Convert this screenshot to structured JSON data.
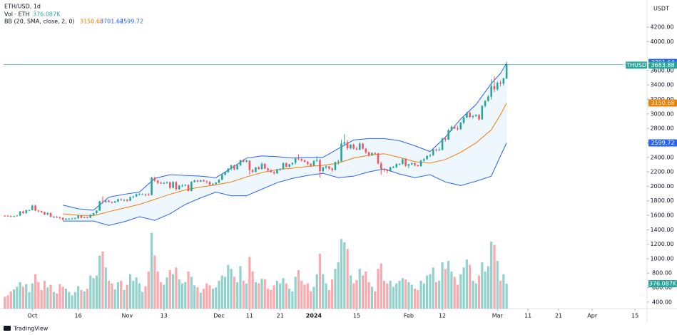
{
  "chart_data": {
    "type": "candlestick",
    "title": "ETH/USD, 1d",
    "volume_legend": "Vol · ETH",
    "volume_value_label": "376.087K",
    "bb_legend": "BB (20, SMA, close, 2, 0)",
    "currency": "USDT",
    "symbol_tag": "ETHUSDT",
    "brand": "TradingView",
    "up_color": "#26a69a",
    "down_color": "#f7525f",
    "bb_colors": {
      "upper": "#2962ff",
      "basis": "#f57c00",
      "lower": "#2962ff",
      "fill": "#e3f2fd"
    },
    "xlim": [
      -0.4,
      209.9
    ],
    "ylim": [
      310,
      4525
    ],
    "vlim": [
      0,
      4600
    ],
    "xticks": [
      {
        "value": 9,
        "label": "Oct"
      },
      {
        "value": 24,
        "label": "16"
      },
      {
        "value": 40,
        "label": "Nov"
      },
      {
        "value": 52,
        "label": "13"
      },
      {
        "value": 70,
        "label": "Dec"
      },
      {
        "value": 80,
        "label": "11"
      },
      {
        "value": 90,
        "label": "21"
      },
      {
        "value": 101,
        "label": "2024"
      },
      {
        "value": 115,
        "label": "15"
      },
      {
        "value": 132,
        "label": "Feb"
      },
      {
        "value": 143,
        "label": "12"
      },
      {
        "value": 161,
        "label": "Mar"
      },
      {
        "value": 171,
        "label": "11"
      },
      {
        "value": 181,
        "label": "21"
      },
      {
        "value": 192,
        "label": "Apr"
      },
      {
        "value": 206,
        "label": "15"
      }
    ],
    "yticks": [
      {
        "value": 400,
        "label": "400.00"
      },
      {
        "value": 600,
        "label": "600.00"
      },
      {
        "value": 800,
        "label": "800.00"
      },
      {
        "value": 1000,
        "label": "1000.00"
      },
      {
        "value": 1200,
        "label": "1200.00"
      },
      {
        "value": 1400,
        "label": "1400.00"
      },
      {
        "value": 1600,
        "label": "1600.00"
      },
      {
        "value": 1800,
        "label": "1800.00"
      },
      {
        "value": 2000,
        "label": "2000.00"
      },
      {
        "value": 2200,
        "label": "2200.00"
      },
      {
        "value": 2400,
        "label": "2400.00"
      },
      {
        "value": 2600,
        "label": "2600.00"
      },
      {
        "value": 2800,
        "label": "2800.00"
      },
      {
        "value": 3000,
        "label": "3000.00"
      },
      {
        "value": 3200,
        "label": "3200.00"
      },
      {
        "value": 3400,
        "label": "3400.00"
      },
      {
        "value": 3600,
        "label": "3600.00"
      },
      {
        "value": 4000,
        "label": "4000.00"
      },
      {
        "value": 4200,
        "label": "4200.00"
      }
    ],
    "candles": [
      [
        1595,
        1602,
        1580,
        1593,
        180
      ],
      [
        1593,
        1600,
        1582,
        1590,
        200
      ],
      [
        1590,
        1596,
        1572,
        1580,
        260
      ],
      [
        1580,
        1594,
        1575,
        1588,
        290
      ],
      [
        1588,
        1604,
        1583,
        1595,
        330
      ],
      [
        1595,
        1660,
        1590,
        1652,
        400
      ],
      [
        1652,
        1665,
        1620,
        1630,
        330
      ],
      [
        1630,
        1678,
        1622,
        1670,
        370
      ],
      [
        1670,
        1682,
        1655,
        1672,
        250
      ],
      [
        1672,
        1745,
        1668,
        1733,
        380
      ],
      [
        1733,
        1745,
        1655,
        1665,
        520
      ],
      [
        1665,
        1675,
        1640,
        1660,
        400
      ],
      [
        1660,
        1662,
        1630,
        1645,
        280
      ],
      [
        1645,
        1650,
        1600,
        1612,
        420
      ],
      [
        1612,
        1640,
        1600,
        1632,
        320
      ],
      [
        1632,
        1636,
        1570,
        1580,
        360
      ],
      [
        1580,
        1590,
        1565,
        1580,
        250
      ],
      [
        1580,
        1590,
        1565,
        1578,
        230
      ],
      [
        1578,
        1582,
        1545,
        1565,
        370
      ],
      [
        1565,
        1570,
        1525,
        1540,
        330
      ],
      [
        1540,
        1560,
        1535,
        1552,
        300
      ],
      [
        1552,
        1560,
        1540,
        1552,
        250
      ],
      [
        1552,
        1565,
        1545,
        1555,
        200
      ],
      [
        1555,
        1570,
        1545,
        1558,
        250
      ],
      [
        1558,
        1605,
        1550,
        1595,
        340
      ],
      [
        1595,
        1600,
        1555,
        1565,
        280
      ],
      [
        1565,
        1580,
        1560,
        1573,
        260
      ],
      [
        1573,
        1580,
        1555,
        1565,
        300
      ],
      [
        1565,
        1615,
        1560,
        1605,
        500
      ],
      [
        1605,
        1635,
        1595,
        1630,
        460
      ],
      [
        1630,
        1670,
        1615,
        1665,
        500
      ],
      [
        1665,
        1800,
        1660,
        1792,
        800
      ],
      [
        1792,
        1860,
        1760,
        1785,
        860
      ],
      [
        1785,
        1810,
        1770,
        1800,
        620
      ],
      [
        1800,
        1815,
        1775,
        1785,
        420
      ],
      [
        1785,
        1790,
        1760,
        1775,
        380
      ],
      [
        1775,
        1800,
        1770,
        1790,
        290
      ],
      [
        1790,
        1830,
        1780,
        1820,
        400
      ],
      [
        1820,
        1830,
        1800,
        1810,
        420
      ],
      [
        1810,
        1820,
        1790,
        1815,
        280
      ],
      [
        1815,
        1825,
        1785,
        1800,
        360
      ],
      [
        1800,
        1860,
        1795,
        1850,
        520
      ],
      [
        1850,
        1870,
        1835,
        1860,
        420
      ],
      [
        1860,
        1900,
        1850,
        1890,
        470
      ],
      [
        1890,
        1905,
        1875,
        1890,
        380
      ],
      [
        1890,
        1900,
        1880,
        1890,
        250
      ],
      [
        1890,
        1900,
        1860,
        1885,
        340
      ],
      [
        1885,
        1905,
        1870,
        1880,
        560
      ],
      [
        1880,
        2130,
        1875,
        2120,
        1140
      ],
      [
        2120,
        2135,
        2060,
        2080,
        800
      ],
      [
        2080,
        2090,
        2030,
        2050,
        560
      ],
      [
        2050,
        2065,
        2030,
        2045,
        400
      ],
      [
        2045,
        2060,
        2035,
        2045,
        360
      ],
      [
        2045,
        2070,
        2035,
        2055,
        470
      ],
      [
        2055,
        2065,
        1960,
        1980,
        580
      ],
      [
        1980,
        2070,
        1970,
        2060,
        520
      ],
      [
        2060,
        2070,
        1940,
        1960,
        620
      ],
      [
        1960,
        2020,
        1950,
        2010,
        440
      ],
      [
        2010,
        2030,
        1990,
        2010,
        380
      ],
      [
        2010,
        2030,
        2000,
        2020,
        400
      ],
      [
        2020,
        2025,
        1930,
        1935,
        560
      ],
      [
        1935,
        2070,
        1930,
        2060,
        480
      ],
      [
        2060,
        2090,
        2050,
        2080,
        350
      ],
      [
        2080,
        2090,
        2055,
        2065,
        320
      ],
      [
        2065,
        2090,
        2060,
        2085,
        240
      ],
      [
        2085,
        2095,
        2060,
        2070,
        300
      ],
      [
        2070,
        2080,
        2040,
        2060,
        380
      ],
      [
        2060,
        2070,
        2015,
        2025,
        350
      ],
      [
        2025,
        2045,
        2020,
        2030,
        300
      ],
      [
        2030,
        2060,
        2025,
        2050,
        320
      ],
      [
        2050,
        2100,
        2040,
        2090,
        420
      ],
      [
        2090,
        2170,
        2085,
        2160,
        500
      ],
      [
        2160,
        2200,
        2150,
        2195,
        480
      ],
      [
        2195,
        2250,
        2185,
        2245,
        660
      ],
      [
        2245,
        2300,
        2225,
        2290,
        600
      ],
      [
        2290,
        2300,
        2220,
        2235,
        480
      ],
      [
        2235,
        2300,
        2230,
        2290,
        400
      ],
      [
        2290,
        2370,
        2280,
        2360,
        640
      ],
      [
        2360,
        2375,
        2330,
        2340,
        420
      ],
      [
        2340,
        2370,
        2330,
        2355,
        380
      ],
      [
        2355,
        2360,
        2160,
        2225,
        780
      ],
      [
        2225,
        2240,
        2180,
        2200,
        560
      ],
      [
        2200,
        2270,
        2190,
        2260,
        400
      ],
      [
        2260,
        2280,
        2230,
        2240,
        380
      ],
      [
        2240,
        2330,
        2230,
        2310,
        450
      ],
      [
        2310,
        2320,
        2240,
        2245,
        440
      ],
      [
        2245,
        2260,
        2210,
        2220,
        300
      ],
      [
        2220,
        2235,
        2190,
        2195,
        280
      ],
      [
        2195,
        2210,
        2160,
        2180,
        350
      ],
      [
        2180,
        2240,
        2170,
        2235,
        420
      ],
      [
        2235,
        2250,
        2210,
        2240,
        380
      ],
      [
        2240,
        2330,
        2235,
        2320,
        460
      ],
      [
        2320,
        2330,
        2260,
        2270,
        380
      ],
      [
        2270,
        2310,
        2260,
        2305,
        300
      ],
      [
        2305,
        2330,
        2290,
        2325,
        260
      ],
      [
        2325,
        2400,
        2300,
        2385,
        480
      ],
      [
        2385,
        2440,
        2360,
        2375,
        580
      ],
      [
        2375,
        2390,
        2340,
        2360,
        420
      ],
      [
        2360,
        2370,
        2330,
        2340,
        360
      ],
      [
        2340,
        2350,
        2290,
        2310,
        380
      ],
      [
        2310,
        2320,
        2270,
        2285,
        260
      ],
      [
        2285,
        2360,
        2280,
        2350,
        330
      ],
      [
        2350,
        2420,
        2340,
        2360,
        520
      ],
      [
        2360,
        2380,
        2120,
        2210,
        830
      ],
      [
        2210,
        2270,
        2190,
        2260,
        520
      ],
      [
        2260,
        2290,
        2240,
        2275,
        380
      ],
      [
        2275,
        2280,
        2230,
        2245,
        280
      ],
      [
        2245,
        2260,
        2200,
        2225,
        440
      ],
      [
        2225,
        2340,
        2220,
        2335,
        600
      ],
      [
        2335,
        2370,
        2300,
        2345,
        700
      ],
      [
        2345,
        2640,
        2340,
        2590,
        1050
      ],
      [
        2590,
        2720,
        2560,
        2610,
        1000
      ],
      [
        2610,
        2640,
        2500,
        2525,
        900
      ],
      [
        2525,
        2580,
        2510,
        2575,
        500
      ],
      [
        2575,
        2590,
        2510,
        2520,
        380
      ],
      [
        2520,
        2550,
        2500,
        2505,
        430
      ],
      [
        2505,
        2610,
        2500,
        2590,
        600
      ],
      [
        2590,
        2600,
        2510,
        2520,
        500
      ],
      [
        2520,
        2530,
        2450,
        2470,
        560
      ],
      [
        2470,
        2480,
        2410,
        2430,
        400
      ],
      [
        2430,
        2470,
        2420,
        2460,
        330
      ],
      [
        2460,
        2470,
        2440,
        2455,
        260
      ],
      [
        2455,
        2460,
        2300,
        2315,
        600
      ],
      [
        2315,
        2340,
        2160,
        2240,
        680
      ],
      [
        2240,
        2250,
        2200,
        2230,
        420
      ],
      [
        2230,
        2240,
        2180,
        2210,
        380
      ],
      [
        2210,
        2270,
        2200,
        2265,
        420
      ],
      [
        2265,
        2280,
        2250,
        2265,
        330
      ],
      [
        2265,
        2320,
        2250,
        2305,
        380
      ],
      [
        2305,
        2320,
        2290,
        2310,
        420
      ],
      [
        2310,
        2390,
        2300,
        2375,
        460
      ],
      [
        2375,
        2390,
        2270,
        2285,
        440
      ],
      [
        2285,
        2310,
        2250,
        2305,
        400
      ],
      [
        2305,
        2330,
        2290,
        2320,
        360
      ],
      [
        2320,
        2325,
        2280,
        2290,
        300
      ],
      [
        2290,
        2300,
        2270,
        2280,
        280
      ],
      [
        2280,
        2370,
        2270,
        2355,
        420
      ],
      [
        2355,
        2390,
        2340,
        2375,
        380
      ],
      [
        2375,
        2430,
        2365,
        2420,
        500
      ],
      [
        2420,
        2450,
        2400,
        2430,
        520
      ],
      [
        2430,
        2530,
        2420,
        2510,
        620
      ],
      [
        2510,
        2520,
        2480,
        2500,
        400
      ],
      [
        2500,
        2540,
        2490,
        2505,
        420
      ],
      [
        2505,
        2670,
        2495,
        2660,
        700
      ],
      [
        2660,
        2690,
        2620,
        2645,
        600
      ],
      [
        2645,
        2790,
        2640,
        2775,
        720
      ],
      [
        2775,
        2840,
        2760,
        2825,
        560
      ],
      [
        2825,
        2840,
        2790,
        2800,
        480
      ],
      [
        2800,
        2830,
        2770,
        2790,
        360
      ],
      [
        2790,
        2890,
        2780,
        2880,
        520
      ],
      [
        2880,
        2960,
        2860,
        2950,
        620
      ],
      [
        2950,
        3030,
        2940,
        3015,
        740
      ],
      [
        3015,
        3035,
        2940,
        2960,
        660
      ],
      [
        2960,
        2990,
        2935,
        2970,
        420
      ],
      [
        2970,
        2995,
        2960,
        2985,
        380
      ],
      [
        2985,
        3000,
        2910,
        2925,
        500
      ],
      [
        2925,
        3120,
        2920,
        3110,
        700
      ],
      [
        3110,
        3190,
        3090,
        3180,
        560
      ],
      [
        3180,
        3260,
        3170,
        3240,
        640
      ],
      [
        3240,
        3480,
        3200,
        3385,
        1010
      ],
      [
        3385,
        3520,
        3300,
        3340,
        960
      ],
      [
        3340,
        3450,
        3320,
        3430,
        720
      ],
      [
        3430,
        3460,
        3380,
        3420,
        420
      ],
      [
        3420,
        3500,
        3390,
        3490,
        520
      ],
      [
        3490,
        3720,
        3480,
        3683.88,
        376.087
      ]
    ],
    "bb": {
      "x": [
        19,
        24,
        29,
        34,
        39,
        44,
        49,
        54,
        59,
        64,
        69,
        74,
        79,
        84,
        89,
        94,
        99,
        104,
        109,
        114,
        119,
        124,
        129,
        134,
        139,
        144,
        149,
        154,
        159,
        162,
        164
      ],
      "upper": [
        1740,
        1690,
        1670,
        1850,
        1890,
        1920,
        2110,
        2160,
        2150,
        2140,
        2120,
        2250,
        2390,
        2420,
        2410,
        2390,
        2400,
        2400,
        2520,
        2640,
        2660,
        2660,
        2630,
        2560,
        2480,
        2680,
        2930,
        3130,
        3420,
        3560,
        3701.64
      ],
      "basis": [
        1620,
        1600,
        1595,
        1650,
        1700,
        1750,
        1820,
        1890,
        1950,
        1990,
        2020,
        2060,
        2130,
        2190,
        2230,
        2250,
        2275,
        2290,
        2320,
        2390,
        2430,
        2450,
        2400,
        2340,
        2320,
        2370,
        2470,
        2600,
        2780,
        2990,
        3150.68
      ],
      "lower": [
        1520,
        1520,
        1520,
        1460,
        1510,
        1580,
        1530,
        1620,
        1750,
        1840,
        1920,
        1870,
        1870,
        1960,
        2050,
        2110,
        2150,
        2180,
        2120,
        2140,
        2200,
        2240,
        2170,
        2120,
        2160,
        2060,
        2010,
        2070,
        2140,
        2420,
        2599.72
      ]
    }
  }
}
